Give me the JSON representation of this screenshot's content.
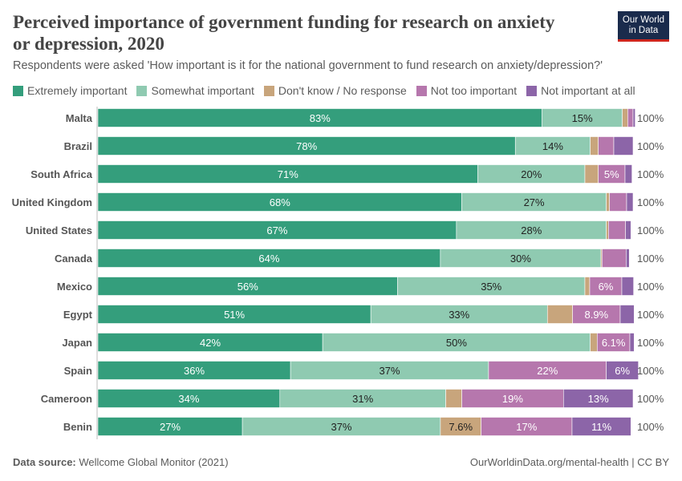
{
  "title": "Perceived importance of government funding for research on anxiety or depression, 2020",
  "subtitle": "Respondents were asked 'How important is it for the national government to fund research on anxiety/depression?'",
  "logo": "Our World in Data",
  "footer": {
    "source_label": "Data source:",
    "source": "Wellcome Global Monitor (2021)",
    "right": "OurWorldinData.org/mental-health | CC BY"
  },
  "chart_data": {
    "type": "bar",
    "orientation": "horizontal",
    "stacked": true,
    "title": "Perceived importance of government funding for research on anxiety or depression, 2020",
    "categories": [
      "Malta",
      "Brazil",
      "South Africa",
      "United Kingdom",
      "United States",
      "Canada",
      "Mexico",
      "Egypt",
      "Japan",
      "Spain",
      "Cameroon",
      "Benin"
    ],
    "totals": [
      "100%",
      "100%",
      "100%",
      "100%",
      "100%",
      "100%",
      "100%",
      "100%",
      "100%",
      "100%",
      "100%",
      "100%"
    ],
    "xlim": [
      0,
      100
    ],
    "legend": "top",
    "series": [
      {
        "name": "Extremely important",
        "color": "#349e7c",
        "text": "#fff",
        "values": [
          83,
          78,
          71,
          68,
          67,
          64,
          56,
          51,
          42,
          36,
          34,
          27
        ],
        "labels": [
          "83%",
          "78%",
          "71%",
          "68%",
          "67%",
          "64%",
          "56%",
          "51%",
          "42%",
          "36%",
          "34%",
          "27%"
        ]
      },
      {
        "name": "Somewhat important",
        "color": "#8fcab1",
        "text": "#222",
        "values": [
          15,
          14,
          20,
          27,
          28,
          30,
          35,
          33,
          50,
          37,
          31,
          37
        ],
        "labels": [
          "15%",
          "14%",
          "20%",
          "27%",
          "28%",
          "30%",
          "35%",
          "33%",
          "50%",
          "37%",
          "31%",
          "37%"
        ]
      },
      {
        "name": "Don't know / No response",
        "color": "#c8a57c",
        "text": "#222",
        "values": [
          1,
          1.5,
          2.5,
          0.6,
          0.4,
          0.2,
          0.9,
          4.7,
          1.3,
          0,
          3,
          7.6
        ],
        "labels": [
          "",
          "",
          "",
          "",
          "",
          "",
          "",
          "",
          "",
          "",
          "",
          "7.6%"
        ]
      },
      {
        "name": "Not too important",
        "color": "#b677ad",
        "text": "#fff",
        "values": [
          1,
          2.9,
          5,
          3.2,
          3.2,
          4.5,
          6,
          8.9,
          6.1,
          22,
          19,
          17
        ],
        "labels": [
          "",
          "",
          "5%",
          "",
          "",
          "",
          "6%",
          "8.9%",
          "6.1%",
          "22%",
          "19%",
          "17%"
        ]
      },
      {
        "name": "Not important at all",
        "color": "#8c65a8",
        "text": "#fff",
        "values": [
          0.4,
          3.6,
          1.3,
          1.2,
          1,
          0.6,
          2.2,
          2.6,
          0.8,
          6,
          13,
          11
        ],
        "labels": [
          "",
          "",
          "",
          "",
          "",
          "",
          "",
          "",
          "",
          "6%",
          "13%",
          "11%"
        ]
      }
    ]
  }
}
